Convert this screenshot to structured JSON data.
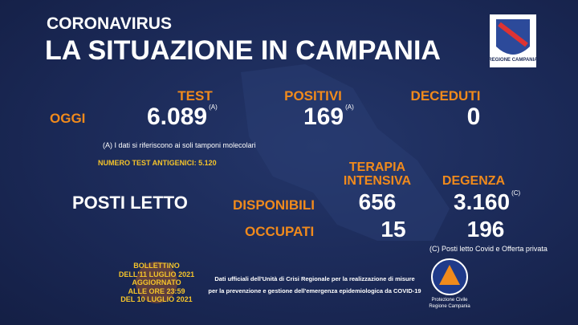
{
  "header": {
    "kicker": "CORONAVIRUS",
    "title": "LA SITUAZIONE IN CAMPANIA",
    "logo_label": "REGIONE CAMPANIA"
  },
  "today": {
    "row_label": "OGGI",
    "columns": [
      {
        "label": "TEST",
        "value": "6.089",
        "note": "(A)"
      },
      {
        "label": "POSITIVI",
        "value": "169",
        "note": "(A)"
      },
      {
        "label": "DECEDUTI",
        "value": "0"
      }
    ],
    "footnote": "(A) I dati si riferiscono ai soli tamponi molecolari",
    "antigen": "NUMERO TEST ANTIGENICI: 5.120"
  },
  "beds": {
    "title": "POSTI LETTO",
    "columns": [
      [
        "TERAPIA",
        "INTENSIVA"
      ],
      "DEGENZA"
    ],
    "rows": [
      {
        "label": "DISPONIBILI",
        "values": [
          "656",
          "3.160"
        ],
        "note": "(C)"
      },
      {
        "label": "OCCUPATI",
        "values": [
          "15",
          "196"
        ]
      }
    ],
    "footnote": "(C) Posti letto Covid e Offerta privata"
  },
  "bulletin": [
    "BOLLETTINO",
    "DELL'11 LUGLIO 2021",
    "AGGIORNATO",
    "ALLE ORE 23:59",
    "DEL 10 LUGLIO 2021"
  ],
  "source": [
    "Dati ufficiali dell'Unità di Crisi Regionale per la realizzazione di misure",
    "per la prevenzione e gestione dell'emergenza epidemiologica da COVID-19"
  ],
  "civil_logo": [
    "Protezione Civile",
    "Regione Campania"
  ]
}
